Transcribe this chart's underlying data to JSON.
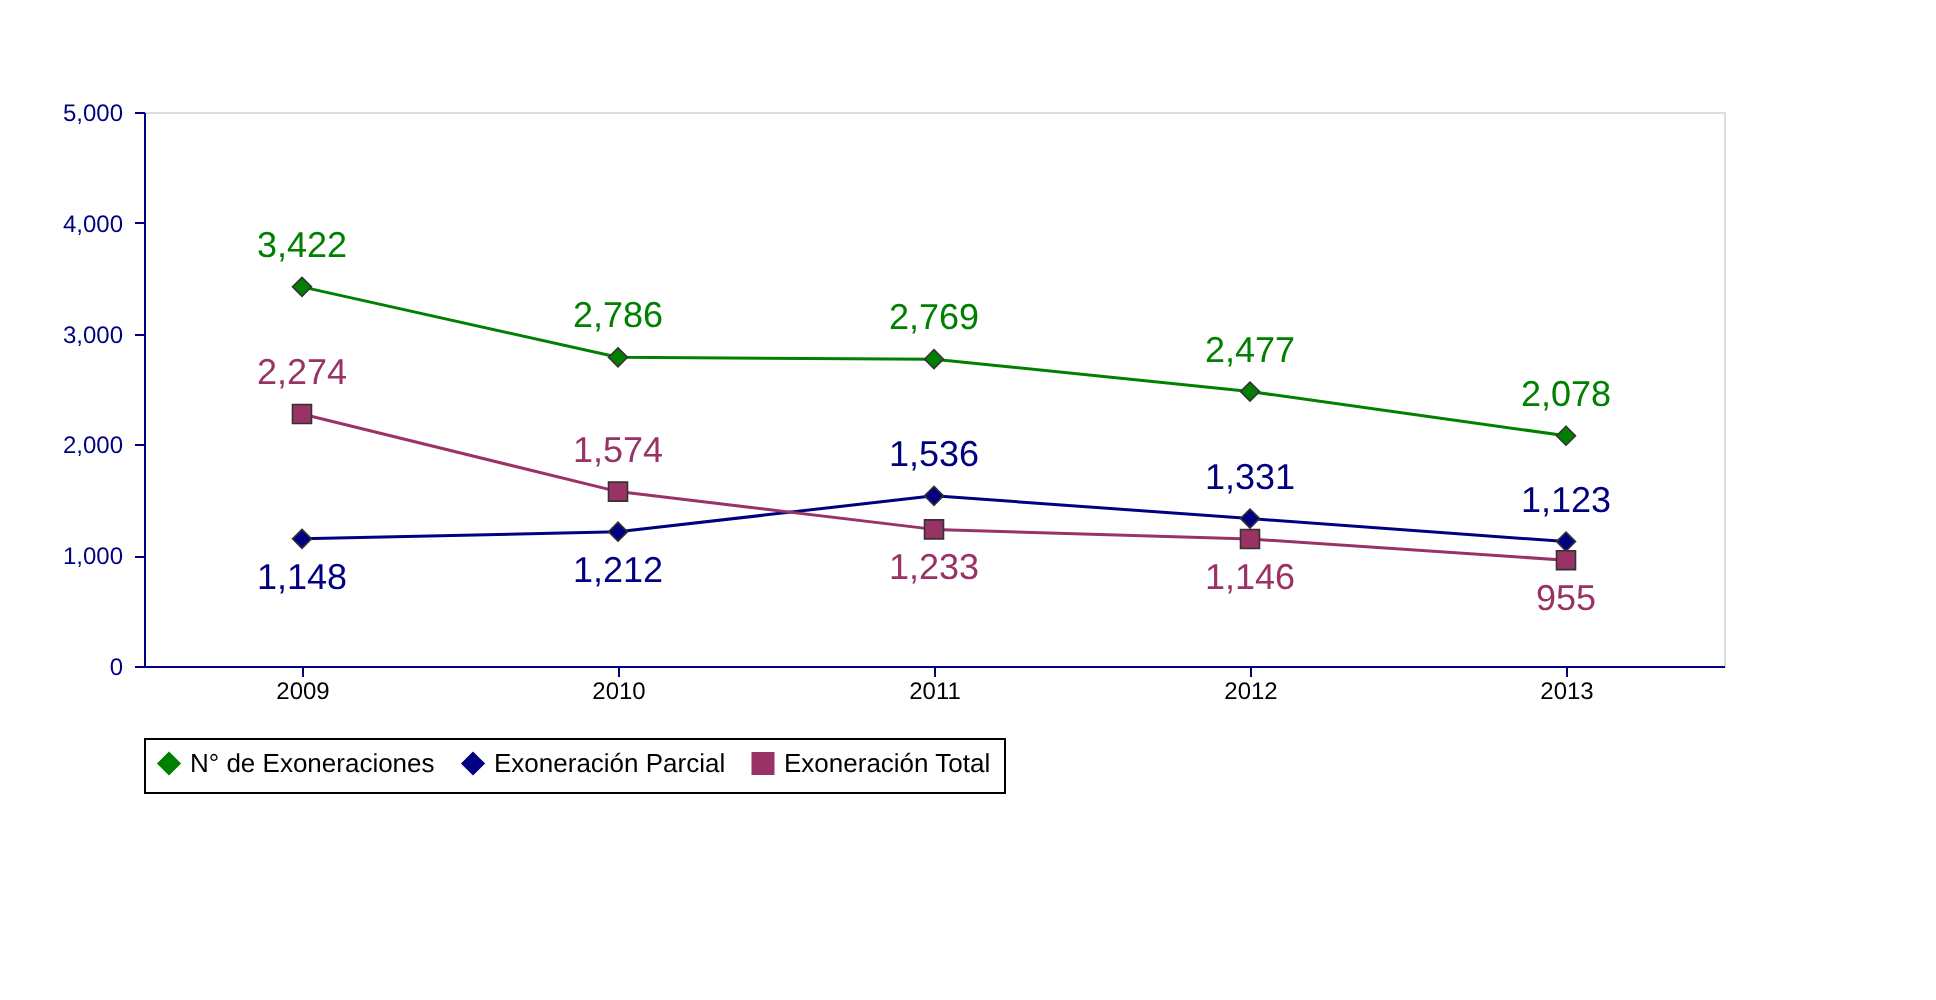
{
  "chart_data": {
    "type": "line",
    "categories": [
      "2009",
      "2010",
      "2011",
      "2012",
      "2013"
    ],
    "series": [
      {
        "name": "N° de Exoneraciones",
        "color": "#008000",
        "marker": "diamond",
        "values": [
          3422,
          2786,
          2769,
          2477,
          2078
        ],
        "value_labels": [
          "3,422",
          "2,786",
          "2,769",
          "2,477",
          "2,078"
        ]
      },
      {
        "name": "Exoneración Parcial",
        "color": "#000080",
        "marker": "diamond",
        "values": [
          1148,
          1212,
          1536,
          1331,
          1123
        ],
        "value_labels": [
          "1,148",
          "1,212",
          "1,536",
          "1,331",
          "1,123"
        ]
      },
      {
        "name": "Exoneración Total",
        "color": "#993366",
        "marker": "square",
        "values": [
          2274,
          1574,
          1233,
          1146,
          955
        ],
        "value_labels": [
          "2,274",
          "1,574",
          "1,233",
          "1,146",
          "955"
        ]
      }
    ],
    "ylim": [
      0,
      5000
    ],
    "yticks": [
      0,
      {
        "value": 1000,
        "label": "1,000"
      },
      {
        "value": 2000,
        "label": "2,000"
      },
      {
        "value": 3000,
        "label": "3,000"
      },
      {
        "value": 4000,
        "label": "4,000"
      },
      {
        "value": 5000,
        "label": "5,000"
      }
    ],
    "grid": false,
    "legend": "bottom",
    "line_style": "solid"
  }
}
